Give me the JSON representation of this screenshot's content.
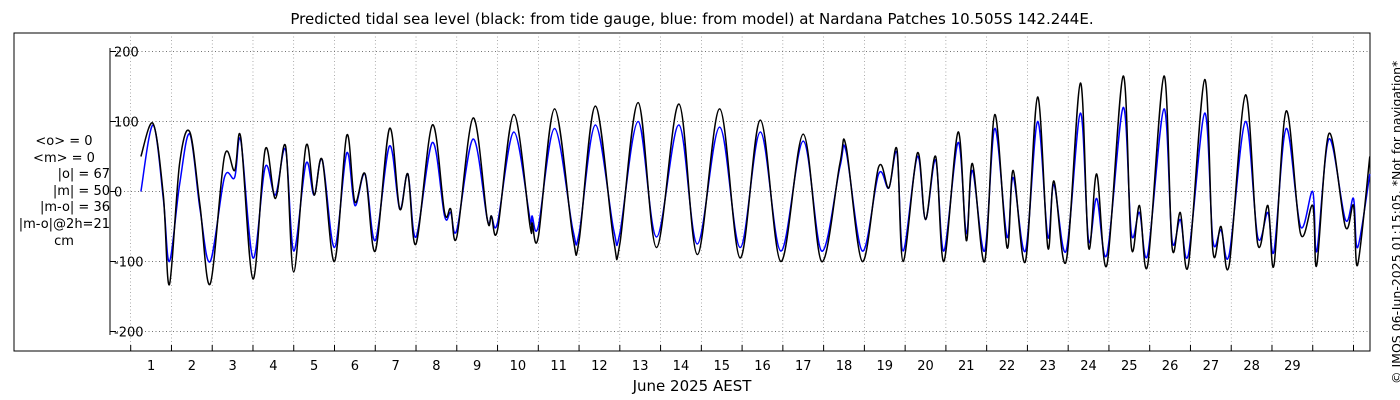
{
  "chart_data": {
    "type": "line",
    "title": "Predicted tidal sea level (black: from tide gauge, blue: from model) at Nardana Patches 10.505S 142.244E.",
    "xlabel": "June 2025 AEST",
    "ylabel": "",
    "xlim": [
      0,
      30.4
    ],
    "ylim": [
      -230,
      230
    ],
    "grid": true,
    "yticks": [
      -200,
      -100,
      0,
      100,
      200
    ],
    "ytick_labels": [
      "-200",
      "-100",
      "0",
      "100",
      "200"
    ],
    "xtick_labels": [
      "1",
      "2",
      "3",
      "4",
      "5",
      "6",
      "7",
      "8",
      "9",
      "10",
      "11",
      "12",
      "13",
      "14",
      "15",
      "16",
      "17",
      "18",
      "19",
      "20",
      "21",
      "22",
      "23",
      "24",
      "25",
      "26",
      "27",
      "28",
      "29"
    ],
    "series": [
      {
        "name": "from tide gauge",
        "color": "#000000",
        "peaks": [
          [
            0.25,
            50
          ],
          [
            0.55,
            97
          ],
          [
            0.8,
            -5
          ],
          [
            0.95,
            -133
          ],
          [
            1.2,
            40
          ],
          [
            1.45,
            85
          ],
          [
            1.7,
            -20
          ],
          [
            1.95,
            -132
          ],
          [
            2.3,
            50
          ],
          [
            2.55,
            30
          ],
          [
            2.7,
            77
          ],
          [
            3.0,
            -125
          ],
          [
            3.3,
            60
          ],
          [
            3.55,
            -10
          ],
          [
            3.8,
            65
          ],
          [
            4.0,
            -115
          ],
          [
            4.3,
            65
          ],
          [
            4.5,
            -5
          ],
          [
            4.7,
            45
          ],
          [
            5.0,
            -100
          ],
          [
            5.3,
            80
          ],
          [
            5.5,
            -15
          ],
          [
            5.75,
            25
          ],
          [
            6.0,
            -85
          ],
          [
            6.35,
            90
          ],
          [
            6.6,
            -25
          ],
          [
            6.8,
            25
          ],
          [
            7.0,
            -75
          ],
          [
            7.4,
            95
          ],
          [
            7.7,
            -30
          ],
          [
            7.85,
            -25
          ],
          [
            8.0,
            -65
          ],
          [
            8.4,
            105
          ],
          [
            8.75,
            -40
          ],
          [
            8.85,
            -35
          ],
          [
            9.0,
            -55
          ],
          [
            9.4,
            110
          ],
          [
            9.8,
            -50
          ],
          [
            9.85,
            -45
          ],
          [
            10.0,
            -65
          ],
          [
            10.4,
            118
          ],
          [
            10.85,
            -65
          ],
          [
            11.0,
            -70
          ],
          [
            11.4,
            122
          ],
          [
            11.85,
            -70
          ],
          [
            12.0,
            -75
          ],
          [
            12.45,
            127
          ],
          [
            12.9,
            -80
          ],
          [
            13.45,
            125
          ],
          [
            13.9,
            -90
          ],
          [
            14.45,
            118
          ],
          [
            14.95,
            -95
          ],
          [
            15.45,
            102
          ],
          [
            15.95,
            -100
          ],
          [
            16.5,
            82
          ],
          [
            16.95,
            -100
          ],
          [
            17.4,
            40
          ],
          [
            17.55,
            65
          ],
          [
            17.95,
            -100
          ],
          [
            18.35,
            35
          ],
          [
            18.6,
            5
          ],
          [
            18.8,
            60
          ],
          [
            18.95,
            -100
          ],
          [
            19.3,
            55
          ],
          [
            19.5,
            -40
          ],
          [
            19.75,
            50
          ],
          [
            19.95,
            -100
          ],
          [
            20.3,
            85
          ],
          [
            20.5,
            -70
          ],
          [
            20.65,
            40
          ],
          [
            20.95,
            -100
          ],
          [
            21.2,
            110
          ],
          [
            21.5,
            -80
          ],
          [
            21.65,
            30
          ],
          [
            21.95,
            -100
          ],
          [
            22.25,
            135
          ],
          [
            22.5,
            -80
          ],
          [
            22.65,
            15
          ],
          [
            22.95,
            -100
          ],
          [
            23.3,
            155
          ],
          [
            23.5,
            -80
          ],
          [
            23.7,
            25
          ],
          [
            23.95,
            -105
          ],
          [
            24.35,
            165
          ],
          [
            24.55,
            -80
          ],
          [
            24.75,
            -20
          ],
          [
            24.95,
            -105
          ],
          [
            25.35,
            165
          ],
          [
            25.55,
            -80
          ],
          [
            25.75,
            -30
          ],
          [
            25.95,
            -105
          ],
          [
            26.35,
            160
          ],
          [
            26.55,
            -85
          ],
          [
            26.75,
            -50
          ],
          [
            26.95,
            -105
          ],
          [
            27.35,
            138
          ],
          [
            27.65,
            -75
          ],
          [
            27.9,
            -20
          ],
          [
            28.05,
            -105
          ],
          [
            28.35,
            115
          ],
          [
            28.7,
            -60
          ],
          [
            29.0,
            -20
          ],
          [
            29.1,
            -105
          ],
          [
            29.4,
            83
          ],
          [
            29.8,
            -50
          ],
          [
            30.0,
            -20
          ],
          [
            30.1,
            -105
          ],
          [
            30.4,
            50
          ]
        ]
      },
      {
        "name": "from model",
        "color": "#0000ff",
        "peaks": [
          [
            0.25,
            0
          ],
          [
            0.55,
            95
          ],
          [
            0.8,
            -10
          ],
          [
            0.95,
            -100
          ],
          [
            1.2,
            10
          ],
          [
            1.45,
            82
          ],
          [
            1.7,
            -25
          ],
          [
            1.95,
            -100
          ],
          [
            2.3,
            20
          ],
          [
            2.55,
            20
          ],
          [
            2.7,
            73
          ],
          [
            3.0,
            -95
          ],
          [
            3.3,
            35
          ],
          [
            3.55,
            -5
          ],
          [
            3.8,
            60
          ],
          [
            4.0,
            -85
          ],
          [
            4.3,
            40
          ],
          [
            4.5,
            -5
          ],
          [
            4.7,
            45
          ],
          [
            5.0,
            -80
          ],
          [
            5.3,
            55
          ],
          [
            5.5,
            -20
          ],
          [
            5.75,
            25
          ],
          [
            6.0,
            -70
          ],
          [
            6.35,
            65
          ],
          [
            6.6,
            -25
          ],
          [
            6.8,
            25
          ],
          [
            7.0,
            -65
          ],
          [
            7.4,
            70
          ],
          [
            7.7,
            -35
          ],
          [
            7.85,
            -30
          ],
          [
            8.0,
            -55
          ],
          [
            8.4,
            75
          ],
          [
            8.75,
            -40
          ],
          [
            8.85,
            -35
          ],
          [
            9.0,
            -45
          ],
          [
            9.4,
            85
          ],
          [
            9.8,
            -40
          ],
          [
            9.85,
            -35
          ],
          [
            10.0,
            -50
          ],
          [
            10.4,
            90
          ],
          [
            10.85,
            -55
          ],
          [
            11.0,
            -60
          ],
          [
            11.4,
            95
          ],
          [
            11.85,
            -55
          ],
          [
            12.0,
            -60
          ],
          [
            12.45,
            100
          ],
          [
            12.9,
            -65
          ],
          [
            13.45,
            95
          ],
          [
            13.9,
            -75
          ],
          [
            14.45,
            92
          ],
          [
            14.95,
            -80
          ],
          [
            15.45,
            85
          ],
          [
            15.95,
            -85
          ],
          [
            16.5,
            72
          ],
          [
            16.95,
            -85
          ],
          [
            17.4,
            35
          ],
          [
            17.55,
            58
          ],
          [
            17.95,
            -85
          ],
          [
            18.35,
            25
          ],
          [
            18.6,
            5
          ],
          [
            18.8,
            55
          ],
          [
            18.95,
            -85
          ],
          [
            19.3,
            50
          ],
          [
            19.5,
            -40
          ],
          [
            19.75,
            45
          ],
          [
            19.95,
            -85
          ],
          [
            20.3,
            70
          ],
          [
            20.5,
            -60
          ],
          [
            20.65,
            30
          ],
          [
            20.95,
            -85
          ],
          [
            21.2,
            90
          ],
          [
            21.5,
            -65
          ],
          [
            21.65,
            20
          ],
          [
            21.95,
            -85
          ],
          [
            22.25,
            100
          ],
          [
            22.5,
            -65
          ],
          [
            22.65,
            10
          ],
          [
            22.95,
            -85
          ],
          [
            23.3,
            112
          ],
          [
            23.5,
            -70
          ],
          [
            23.7,
            -10
          ],
          [
            23.95,
            -90
          ],
          [
            24.35,
            120
          ],
          [
            24.55,
            -60
          ],
          [
            24.75,
            -30
          ],
          [
            24.95,
            -90
          ],
          [
            25.35,
            118
          ],
          [
            25.55,
            -70
          ],
          [
            25.75,
            -40
          ],
          [
            25.95,
            -90
          ],
          [
            26.35,
            112
          ],
          [
            26.55,
            -70
          ],
          [
            26.75,
            -55
          ],
          [
            26.95,
            -90
          ],
          [
            27.35,
            100
          ],
          [
            27.65,
            -65
          ],
          [
            27.9,
            -30
          ],
          [
            28.05,
            -85
          ],
          [
            28.35,
            90
          ],
          [
            28.7,
            -50
          ],
          [
            29.0,
            0
          ],
          [
            29.1,
            -85
          ],
          [
            29.4,
            75
          ],
          [
            29.8,
            -40
          ],
          [
            30.0,
            -10
          ],
          [
            30.1,
            -80
          ],
          [
            30.4,
            25
          ]
        ]
      }
    ],
    "stats": [
      "<o> = 0",
      "<m> = 0",
      "|o| = 67",
      "|m| = 50",
      "|m-o| = 36",
      "|m-o|@2h=21",
      "cm"
    ],
    "copyright": "© IMOS 06-Jun-2025 01:15:05. *Not for navigation*"
  }
}
